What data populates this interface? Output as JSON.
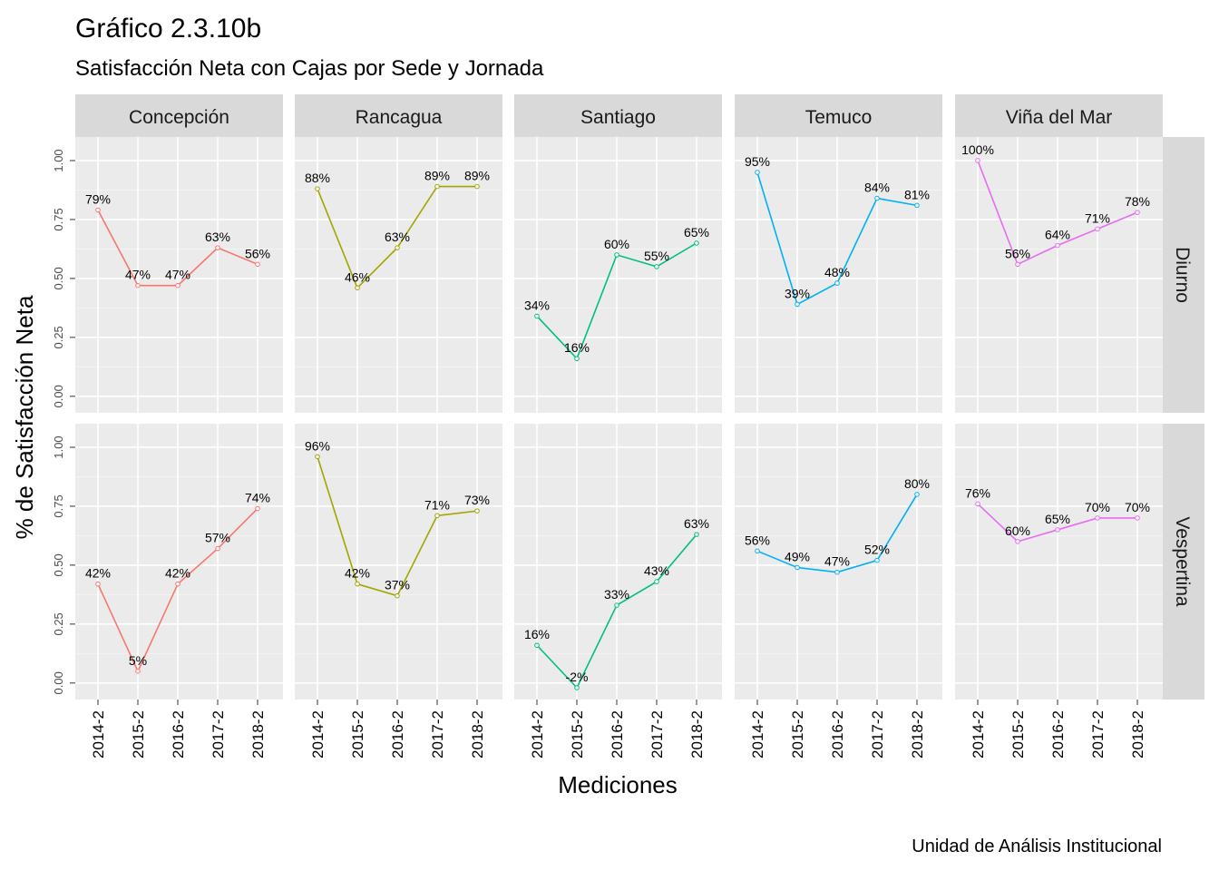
{
  "chart_data": {
    "type": "line",
    "title": "Gráfico 2.3.10b",
    "subtitle": "Satisfacción Neta con Cajas por Sede y Jornada",
    "xlabel": "Mediciones",
    "ylabel": "% de Satisfacción Neta",
    "caption": "Unidad de Análisis Institucional",
    "categories": [
      "2014-2",
      "2015-2",
      "2016-2",
      "2017-2",
      "2018-2"
    ],
    "y_ticks": [
      "0.00",
      "0.25",
      "0.50",
      "0.75",
      "1.00"
    ],
    "ylim": [
      -0.07,
      1.1
    ],
    "grid": true,
    "legend": "none",
    "columns": [
      "Concepción",
      "Rancagua",
      "Santiago",
      "Temuco",
      "Viña del Mar"
    ],
    "rows": [
      "Diurno",
      "Vespertina"
    ],
    "colors": {
      "Concepción": "#F8766D",
      "Rancagua": "#A3A500",
      "Santiago": "#00BF7D",
      "Temuco": "#00B0F6",
      "Viña del Mar": "#E76BF3"
    },
    "panels": [
      {
        "sede": "Concepción",
        "jornada": "Diurno",
        "values": [
          0.79,
          0.47,
          0.47,
          0.63,
          0.56
        ],
        "labels": [
          "79%",
          "47%",
          "47%",
          "63%",
          "56%"
        ]
      },
      {
        "sede": "Rancagua",
        "jornada": "Diurno",
        "values": [
          0.88,
          0.46,
          0.63,
          0.89,
          0.89
        ],
        "labels": [
          "88%",
          "46%",
          "63%",
          "89%",
          "89%"
        ]
      },
      {
        "sede": "Santiago",
        "jornada": "Diurno",
        "values": [
          0.34,
          0.16,
          0.6,
          0.55,
          0.65
        ],
        "labels": [
          "34%",
          "16%",
          "60%",
          "55%",
          "65%"
        ]
      },
      {
        "sede": "Temuco",
        "jornada": "Diurno",
        "values": [
          0.95,
          0.39,
          0.48,
          0.84,
          0.81
        ],
        "labels": [
          "95%",
          "39%",
          "48%",
          "84%",
          "81%"
        ]
      },
      {
        "sede": "Viña del Mar",
        "jornada": "Diurno",
        "values": [
          1.0,
          0.56,
          0.64,
          0.71,
          0.78
        ],
        "labels": [
          "100%",
          "56%",
          "64%",
          "71%",
          "78%"
        ]
      },
      {
        "sede": "Concepción",
        "jornada": "Vespertina",
        "values": [
          0.42,
          0.05,
          0.42,
          0.57,
          0.74
        ],
        "labels": [
          "42%",
          "5%",
          "42%",
          "57%",
          "74%"
        ]
      },
      {
        "sede": "Rancagua",
        "jornada": "Vespertina",
        "values": [
          0.96,
          0.42,
          0.37,
          0.71,
          0.73
        ],
        "labels": [
          "96%",
          "42%",
          "37%",
          "71%",
          "73%"
        ]
      },
      {
        "sede": "Santiago",
        "jornada": "Vespertina",
        "values": [
          0.16,
          -0.02,
          0.33,
          0.43,
          0.63
        ],
        "labels": [
          "16%",
          "-2%",
          "33%",
          "43%",
          "63%"
        ]
      },
      {
        "sede": "Temuco",
        "jornada": "Vespertina",
        "values": [
          0.56,
          0.49,
          0.47,
          0.52,
          0.8
        ],
        "labels": [
          "56%",
          "49%",
          "47%",
          "52%",
          "80%"
        ]
      },
      {
        "sede": "Viña del Mar",
        "jornada": "Vespertina",
        "values": [
          0.76,
          0.6,
          0.65,
          0.7,
          0.7
        ],
        "labels": [
          "76%",
          "60%",
          "65%",
          "70%",
          "70%"
        ]
      }
    ]
  }
}
